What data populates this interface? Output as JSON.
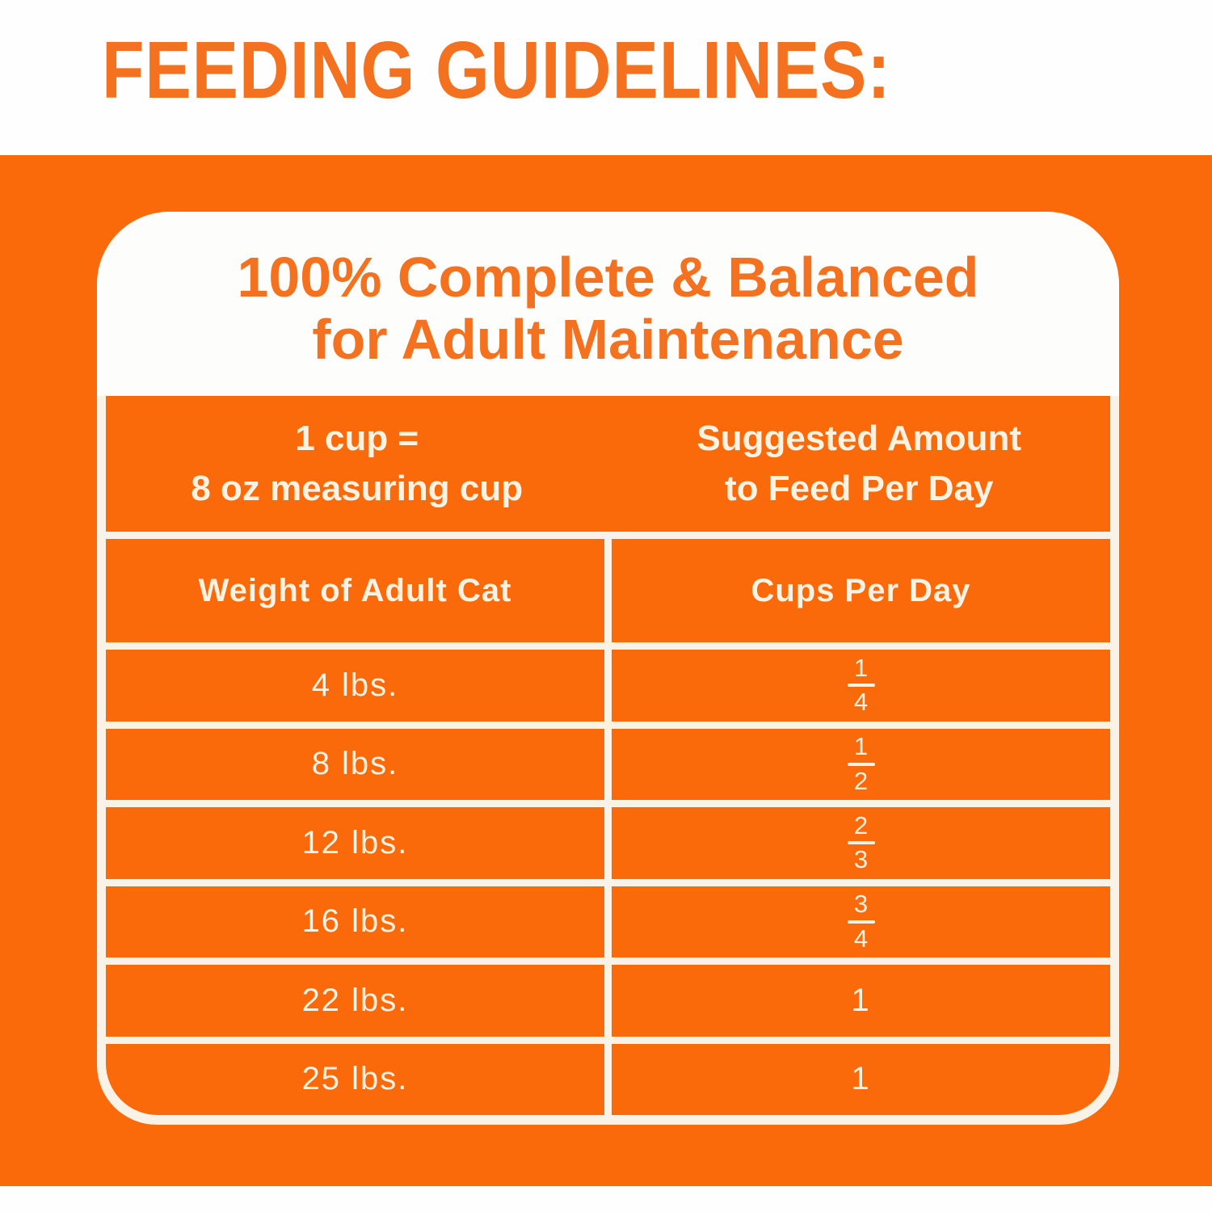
{
  "page": {
    "heading": "FEEDING GUIDELINES:"
  },
  "colors": {
    "background_orange": "#FA6A0A",
    "heading_orange": "#F4721F",
    "cell_text_cream": "#FAF2E3",
    "card_white": "#FDFDFB"
  },
  "card": {
    "title_line1": "100% Complete & Balanced",
    "title_line2": "for Adult Maintenance",
    "table": {
      "unit_note_line1": "1 cup =",
      "unit_note_line2": "8 oz measuring cup",
      "suggestion_header_line1": "Suggested Amount",
      "suggestion_header_line2": "to Feed Per Day",
      "col1_header": "Weight of Adult Cat",
      "col2_header": "Cups Per Day",
      "rows": [
        {
          "weight": "4 lbs.",
          "cups_num": "1",
          "cups_den": "4"
        },
        {
          "weight": "8 lbs.",
          "cups_num": "1",
          "cups_den": "2"
        },
        {
          "weight": "12 lbs.",
          "cups_num": "2",
          "cups_den": "3"
        },
        {
          "weight": "16 lbs.",
          "cups_num": "3",
          "cups_den": "4"
        },
        {
          "weight": "22 lbs.",
          "cups_whole": "1"
        },
        {
          "weight": "25 lbs.",
          "cups_whole": "1"
        }
      ]
    }
  }
}
